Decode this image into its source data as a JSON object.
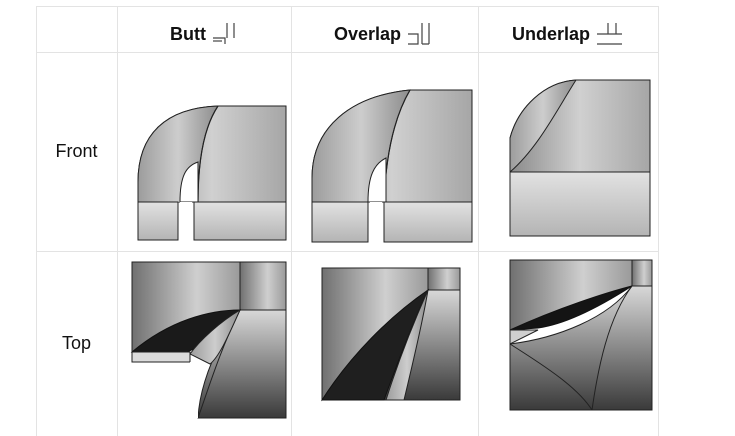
{
  "columns": [
    {
      "label": "Butt",
      "icon": "butt-joint-icon"
    },
    {
      "label": "Overlap",
      "icon": "overlap-joint-icon"
    },
    {
      "label": "Underlap",
      "icon": "underlap-joint-icon"
    }
  ],
  "rows": [
    {
      "label": "Front"
    },
    {
      "label": "Top"
    }
  ]
}
